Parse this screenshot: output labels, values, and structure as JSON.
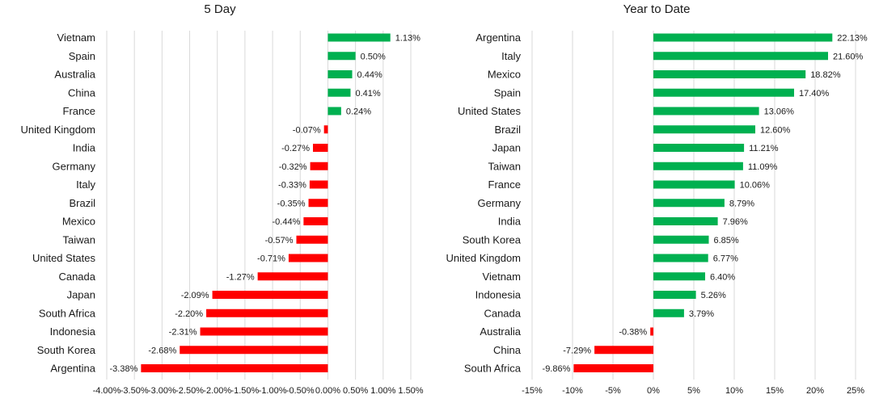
{
  "colors": {
    "positive": "#00b050",
    "negative": "#ff0000",
    "grid": "#d9d9d9",
    "text": "#1a1a1a"
  },
  "chart_data": [
    {
      "type": "bar",
      "orientation": "horizontal",
      "title": "5 Day",
      "categories": [
        "Vietnam",
        "Spain",
        "Australia",
        "China",
        "France",
        "United Kingdom",
        "India",
        "Germany",
        "Italy",
        "Brazil",
        "Mexico",
        "Taiwan",
        "United States",
        "Canada",
        "Japan",
        "South Africa",
        "Indonesia",
        "South Korea",
        "Argentina"
      ],
      "values": [
        1.13,
        0.5,
        0.44,
        0.41,
        0.24,
        -0.07,
        -0.27,
        -0.32,
        -0.33,
        -0.35,
        -0.44,
        -0.57,
        -0.71,
        -1.27,
        -2.09,
        -2.2,
        -2.31,
        -2.68,
        -3.38
      ],
      "value_labels": [
        "1.13%",
        "0.50%",
        "0.44%",
        "0.41%",
        "0.24%",
        "-0.07%",
        "-0.27%",
        "-0.32%",
        "-0.33%",
        "-0.35%",
        "-0.44%",
        "-0.57%",
        "-0.71%",
        "-1.27%",
        "-2.09%",
        "-2.20%",
        "-2.31%",
        "-2.68%",
        "-3.38%"
      ],
      "xlim": [
        -4.0,
        1.5
      ],
      "ticks": [
        -4.0,
        -3.5,
        -3.0,
        -2.5,
        -2.0,
        -1.5,
        -1.0,
        -0.5,
        0.0,
        0.5,
        1.0,
        1.5
      ],
      "tick_labels": [
        "-4.00%",
        "-3.50%",
        "-3.00%",
        "-2.50%",
        "-2.00%",
        "-1.50%",
        "-1.00%",
        "-0.50%",
        "0.00%",
        "0.50%",
        "1.00%",
        "1.50%"
      ],
      "grid": true,
      "xlabel": "",
      "ylabel": ""
    },
    {
      "type": "bar",
      "orientation": "horizontal",
      "title": "Year to Date",
      "categories": [
        "Argentina",
        "Italy",
        "Mexico",
        "Spain",
        "United States",
        "Brazil",
        "Japan",
        "Taiwan",
        "France",
        "Germany",
        "India",
        "South Korea",
        "United Kingdom",
        "Vietnam",
        "Indonesia",
        "Canada",
        "Australia",
        "China",
        "South Africa"
      ],
      "values": [
        22.13,
        21.6,
        18.82,
        17.4,
        13.06,
        12.6,
        11.21,
        11.09,
        10.06,
        8.79,
        7.96,
        6.85,
        6.77,
        6.4,
        5.26,
        3.79,
        -0.38,
        -7.29,
        -9.86
      ],
      "value_labels": [
        "22.13%",
        "21.60%",
        "18.82%",
        "17.40%",
        "13.06%",
        "12.60%",
        "11.21%",
        "11.09%",
        "10.06%",
        "8.79%",
        "7.96%",
        "6.85%",
        "6.77%",
        "6.40%",
        "5.26%",
        "3.79%",
        "-0.38%",
        "-7.29%",
        "-9.86%"
      ],
      "xlim": [
        -15,
        25
      ],
      "ticks": [
        -15,
        -10,
        -5,
        0,
        5,
        10,
        15,
        20,
        25
      ],
      "tick_labels": [
        "-15%",
        "-10%",
        "-5%",
        "0%",
        "5%",
        "10%",
        "15%",
        "20%",
        "25%"
      ],
      "grid": true,
      "xlabel": "",
      "ylabel": ""
    }
  ]
}
